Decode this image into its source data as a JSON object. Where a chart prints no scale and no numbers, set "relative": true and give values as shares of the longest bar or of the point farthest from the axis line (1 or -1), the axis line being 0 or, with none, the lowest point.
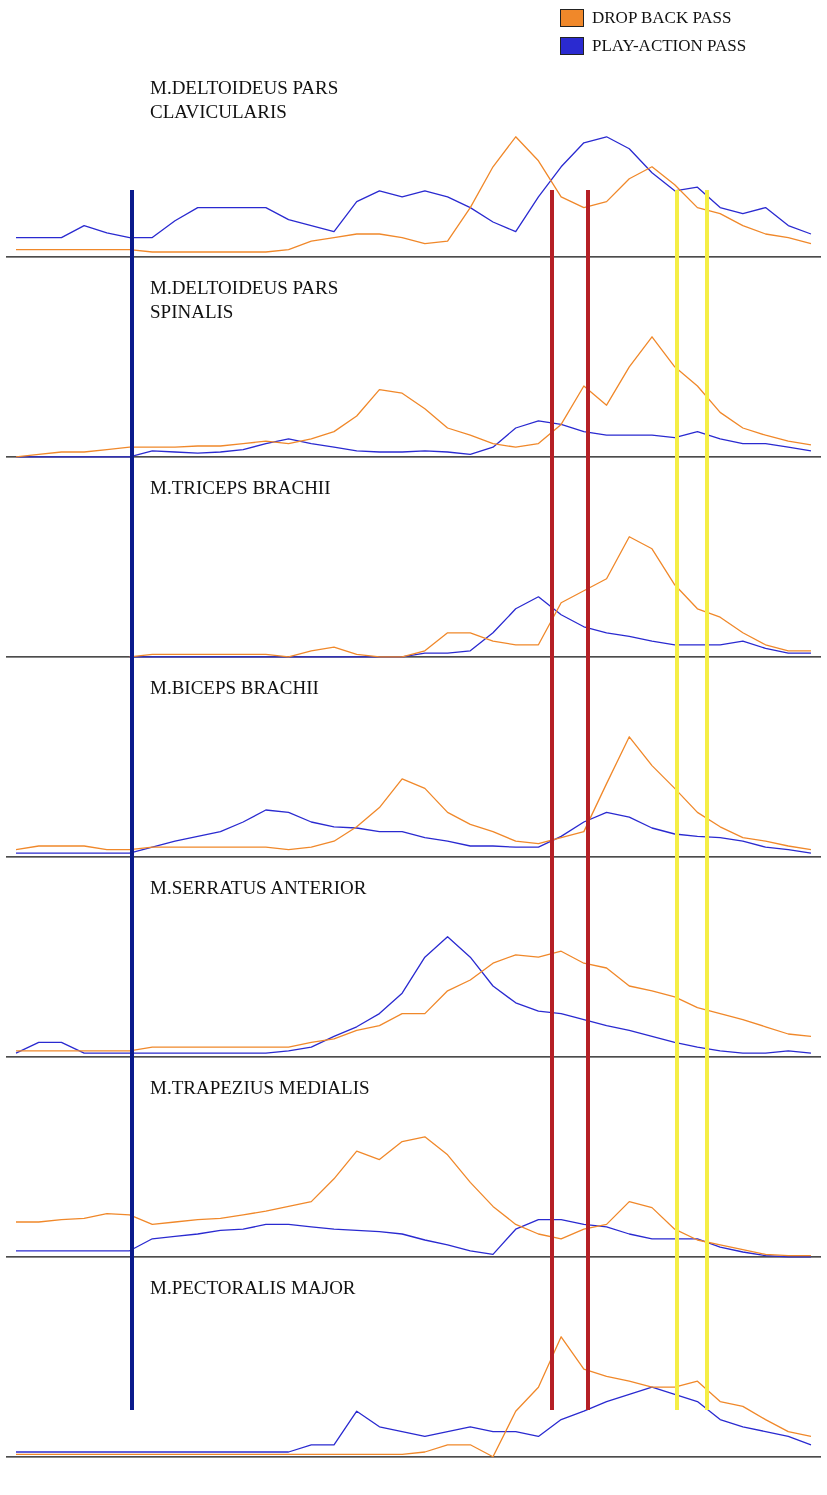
{
  "chart_data": [
    {
      "type": "line",
      "title": "M.DELTOIDEUS PARS CLAVICULARIS",
      "relative": true,
      "tick_labels": false,
      "legend": "top right",
      "categories": [
        null,
        null,
        null,
        null,
        null,
        null,
        null,
        null,
        null,
        null,
        null,
        null,
        null,
        null,
        null,
        null,
        null,
        null,
        null,
        null,
        null,
        null,
        null,
        null,
        null,
        null,
        null,
        null,
        null,
        null,
        null,
        null,
        null,
        null,
        null,
        null
      ],
      "series": [
        {
          "name": "DROP BACK PASS",
          "color": "#f0882a",
          "values": [
            0.06,
            0.06,
            0.06,
            0.06,
            0.06,
            0.06,
            0.04,
            0.04,
            0.04,
            0.04,
            0.04,
            0.04,
            0.06,
            0.13,
            0.16,
            0.19,
            0.19,
            0.16,
            0.11,
            0.13,
            0.41,
            0.75,
            1,
            0.8,
            0.5,
            0.41,
            0.46,
            0.65,
            0.75,
            0.6,
            0.41,
            0.36,
            0.26,
            0.19,
            0.16,
            0.11
          ]
        },
        {
          "name": "PLAY-ACTION PASS",
          "color": "#2a2ad0",
          "values": [
            0.16,
            0.16,
            0.16,
            0.26,
            0.2,
            0.16,
            0.16,
            0.3,
            0.41,
            0.41,
            0.41,
            0.41,
            0.31,
            0.26,
            0.21,
            0.46,
            0.55,
            0.5,
            0.55,
            0.5,
            0.41,
            0.29,
            0.21,
            0.5,
            0.75,
            0.95,
            1,
            0.9,
            0.7,
            0.55,
            0.58,
            0.41,
            0.36,
            0.41,
            0.26,
            0.19
          ]
        }
      ]
    },
    {
      "type": "line",
      "title": "M.DELTOIDEUS PARS SPINALIS",
      "relative": true,
      "tick_labels": false,
      "categories": [
        null,
        null,
        null,
        null,
        null,
        null,
        null,
        null,
        null,
        null,
        null,
        null,
        null,
        null,
        null,
        null,
        null,
        null,
        null,
        null,
        null,
        null,
        null,
        null,
        null,
        null,
        null,
        null,
        null,
        null,
        null,
        null,
        null,
        null,
        null,
        null
      ],
      "series": [
        {
          "color": "#f0882a",
          "values": [
            0,
            0.02,
            0.04,
            0.04,
            0.06,
            0.08,
            0.08,
            0.08,
            0.09,
            0.09,
            0.11,
            0.13,
            0.11,
            0.15,
            0.21,
            0.34,
            0.56,
            0.53,
            0.4,
            0.24,
            0.18,
            0.11,
            0.08,
            0.11,
            0.27,
            0.59,
            0.43,
            0.75,
            1,
            0.75,
            0.59,
            0.37,
            0.24,
            0.18,
            0.13,
            0.1
          ]
        },
        {
          "color": "#2a2ad0",
          "values": [
            0,
            0,
            0,
            0,
            0,
            0,
            0.05,
            0.04,
            0.03,
            0.04,
            0.06,
            0.11,
            0.15,
            0.11,
            0.08,
            0.05,
            0.04,
            0.04,
            0.05,
            0.04,
            0.02,
            0.08,
            0.24,
            0.3,
            0.27,
            0.21,
            0.18,
            0.18,
            0.18,
            0.16,
            0.21,
            0.15,
            0.11,
            0.11,
            0.08,
            0.05
          ]
        }
      ]
    },
    {
      "type": "line",
      "title": "M.TRICEPS BRACHII",
      "relative": true,
      "tick_labels": false,
      "categories": [
        null,
        null,
        null,
        null,
        null,
        null,
        null,
        null,
        null,
        null,
        null,
        null,
        null,
        null,
        null,
        null,
        null,
        null,
        null,
        null,
        null,
        null,
        null,
        null,
        null,
        null,
        null,
        null,
        null,
        null,
        null,
        null,
        null,
        null,
        null,
        null
      ],
      "series": [
        {
          "color": "#f0882a",
          "values": [
            null,
            null,
            null,
            null,
            null,
            0,
            0.02,
            0.02,
            0.02,
            0.02,
            0.02,
            0.02,
            0,
            0.05,
            0.08,
            0.02,
            0,
            0,
            0.05,
            0.2,
            0.2,
            0.13,
            0.1,
            0.1,
            0.45,
            0.55,
            0.65,
            1,
            0.9,
            0.6,
            0.4,
            0.33,
            0.2,
            0.1,
            0.05,
            0.05
          ]
        },
        {
          "color": "#2a2ad0",
          "values": [
            null,
            null,
            null,
            null,
            null,
            0,
            0,
            0,
            0,
            0,
            0,
            0,
            0,
            0,
            0,
            0,
            0,
            0,
            0.03,
            0.03,
            0.05,
            0.2,
            0.4,
            0.5,
            0.35,
            0.25,
            0.2,
            0.17,
            0.13,
            0.1,
            0.1,
            0.1,
            0.13,
            0.07,
            0.03,
            0.03
          ]
        }
      ]
    },
    {
      "type": "line",
      "title": "M.BICEPS BRACHII",
      "relative": true,
      "tick_labels": false,
      "categories": [
        null,
        null,
        null,
        null,
        null,
        null,
        null,
        null,
        null,
        null,
        null,
        null,
        null,
        null,
        null,
        null,
        null,
        null,
        null,
        null,
        null,
        null,
        null,
        null,
        null,
        null,
        null,
        null,
        null,
        null,
        null,
        null,
        null,
        null,
        null,
        null
      ],
      "series": [
        {
          "color": "#f0882a",
          "values": [
            0.06,
            0.09,
            0.09,
            0.09,
            0.06,
            0.06,
            0.08,
            0.08,
            0.08,
            0.08,
            0.08,
            0.08,
            0.06,
            0.08,
            0.13,
            0.25,
            0.41,
            0.65,
            0.57,
            0.37,
            0.27,
            0.21,
            0.13,
            0.11,
            0.16,
            0.21,
            0.61,
            1,
            0.76,
            0.57,
            0.37,
            0.25,
            0.16,
            0.13,
            0.09,
            0.06
          ]
        },
        {
          "color": "#2a2ad0",
          "values": [
            0.03,
            0.03,
            0.03,
            0.03,
            0.03,
            0.03,
            0.08,
            0.13,
            0.17,
            0.21,
            0.29,
            0.39,
            0.37,
            0.29,
            0.25,
            0.24,
            0.21,
            0.21,
            0.16,
            0.13,
            0.09,
            0.09,
            0.08,
            0.08,
            0.17,
            0.29,
            0.37,
            0.33,
            0.24,
            0.19,
            0.17,
            0.16,
            0.13,
            0.08,
            0.06,
            0.03
          ]
        }
      ]
    },
    {
      "type": "line",
      "title": "M.SERRATUS ANTERIOR",
      "relative": true,
      "tick_labels": false,
      "categories": [
        null,
        null,
        null,
        null,
        null,
        null,
        null,
        null,
        null,
        null,
        null,
        null,
        null,
        null,
        null,
        null,
        null,
        null,
        null,
        null,
        null,
        null,
        null,
        null,
        null,
        null,
        null,
        null,
        null,
        null,
        null,
        null,
        null,
        null,
        null,
        null
      ],
      "series": [
        {
          "color": "#f0882a",
          "values": [
            0.05,
            0.05,
            0.05,
            0.05,
            0.05,
            0.05,
            0.08,
            0.08,
            0.08,
            0.08,
            0.08,
            0.08,
            0.08,
            0.12,
            0.15,
            0.22,
            0.26,
            0.36,
            0.36,
            0.55,
            0.64,
            0.78,
            0.85,
            0.83,
            0.88,
            0.78,
            0.74,
            0.59,
            0.55,
            0.5,
            0.41,
            0.36,
            0.31,
            0.25,
            0.19,
            0.17
          ]
        },
        {
          "color": "#2a2ad0",
          "values": [
            0.03,
            0.12,
            0.12,
            0.03,
            0.03,
            0.03,
            0.03,
            0.03,
            0.03,
            0.03,
            0.03,
            0.03,
            0.05,
            0.08,
            0.17,
            0.25,
            0.36,
            0.53,
            0.83,
            1,
            0.83,
            0.59,
            0.45,
            0.38,
            0.36,
            0.31,
            0.26,
            0.22,
            0.17,
            0.12,
            0.08,
            0.05,
            0.03,
            0.03,
            0.05,
            0.03
          ]
        }
      ]
    },
    {
      "type": "line",
      "title": "M.TRAPEZIUS MEDIALIS",
      "relative": true,
      "tick_labels": false,
      "categories": [
        null,
        null,
        null,
        null,
        null,
        null,
        null,
        null,
        null,
        null,
        null,
        null,
        null,
        null,
        null,
        null,
        null,
        null,
        null,
        null,
        null,
        null,
        null,
        null,
        null,
        null,
        null,
        null,
        null,
        null,
        null,
        null,
        null,
        null,
        null,
        null
      ],
      "series": [
        {
          "color": "#f0882a",
          "values": [
            0.29,
            0.29,
            0.31,
            0.32,
            0.36,
            0.35,
            0.27,
            0.29,
            0.31,
            0.32,
            0.35,
            0.38,
            0.42,
            0.46,
            0.65,
            0.88,
            0.81,
            0.96,
            1,
            0.85,
            0.62,
            0.42,
            0.27,
            0.19,
            0.15,
            0.23,
            0.27,
            0.46,
            0.41,
            0.23,
            0.14,
            0.1,
            0.06,
            0.02,
            0.01,
            0.01
          ]
        },
        {
          "color": "#2a2ad0",
          "values": [
            0.05,
            0.05,
            0.05,
            0.05,
            0.05,
            0.05,
            0.15,
            0.17,
            0.19,
            0.22,
            0.23,
            0.27,
            0.27,
            0.25,
            0.23,
            0.22,
            0.21,
            0.19,
            0.14,
            0.1,
            0.05,
            0.02,
            0.23,
            0.31,
            0.31,
            0.27,
            0.25,
            0.19,
            0.15,
            0.15,
            0.15,
            0.08,
            0.04,
            0.01,
            0,
            0
          ]
        }
      ]
    },
    {
      "type": "line",
      "title": "M.PECTORALIS MAJOR",
      "relative": true,
      "tick_labels": false,
      "categories": [
        null,
        null,
        null,
        null,
        null,
        null,
        null,
        null,
        null,
        null,
        null,
        null,
        null,
        null,
        null,
        null,
        null,
        null,
        null,
        null,
        null,
        null,
        null,
        null,
        null,
        null,
        null,
        null,
        null,
        null,
        null,
        null,
        null,
        null,
        null,
        null
      ],
      "series": [
        {
          "color": "#f0882a",
          "values": [
            0.02,
            0.02,
            0.02,
            0.02,
            0.02,
            0.02,
            0.02,
            0.02,
            0.02,
            0.02,
            0.02,
            0.02,
            0.02,
            0.02,
            0.02,
            0.02,
            0.02,
            0.02,
            0.04,
            0.1,
            0.1,
            0,
            0.38,
            0.58,
            1,
            0.73,
            0.67,
            0.63,
            0.58,
            0.58,
            0.63,
            0.46,
            0.42,
            0.31,
            0.21,
            0.17
          ]
        },
        {
          "color": "#2a2ad0",
          "values": [
            0.04,
            0.04,
            0.04,
            0.04,
            0.04,
            0.04,
            0.04,
            0.04,
            0.04,
            0.04,
            0.04,
            0.04,
            0.04,
            0.1,
            0.1,
            0.38,
            0.25,
            0.21,
            0.17,
            0.21,
            0.25,
            0.21,
            0.21,
            0.17,
            0.31,
            0.38,
            0.46,
            0.52,
            0.58,
            0.52,
            0.46,
            0.31,
            0.25,
            0.21,
            0.17,
            0.1
          ]
        }
      ]
    }
  ]
}
